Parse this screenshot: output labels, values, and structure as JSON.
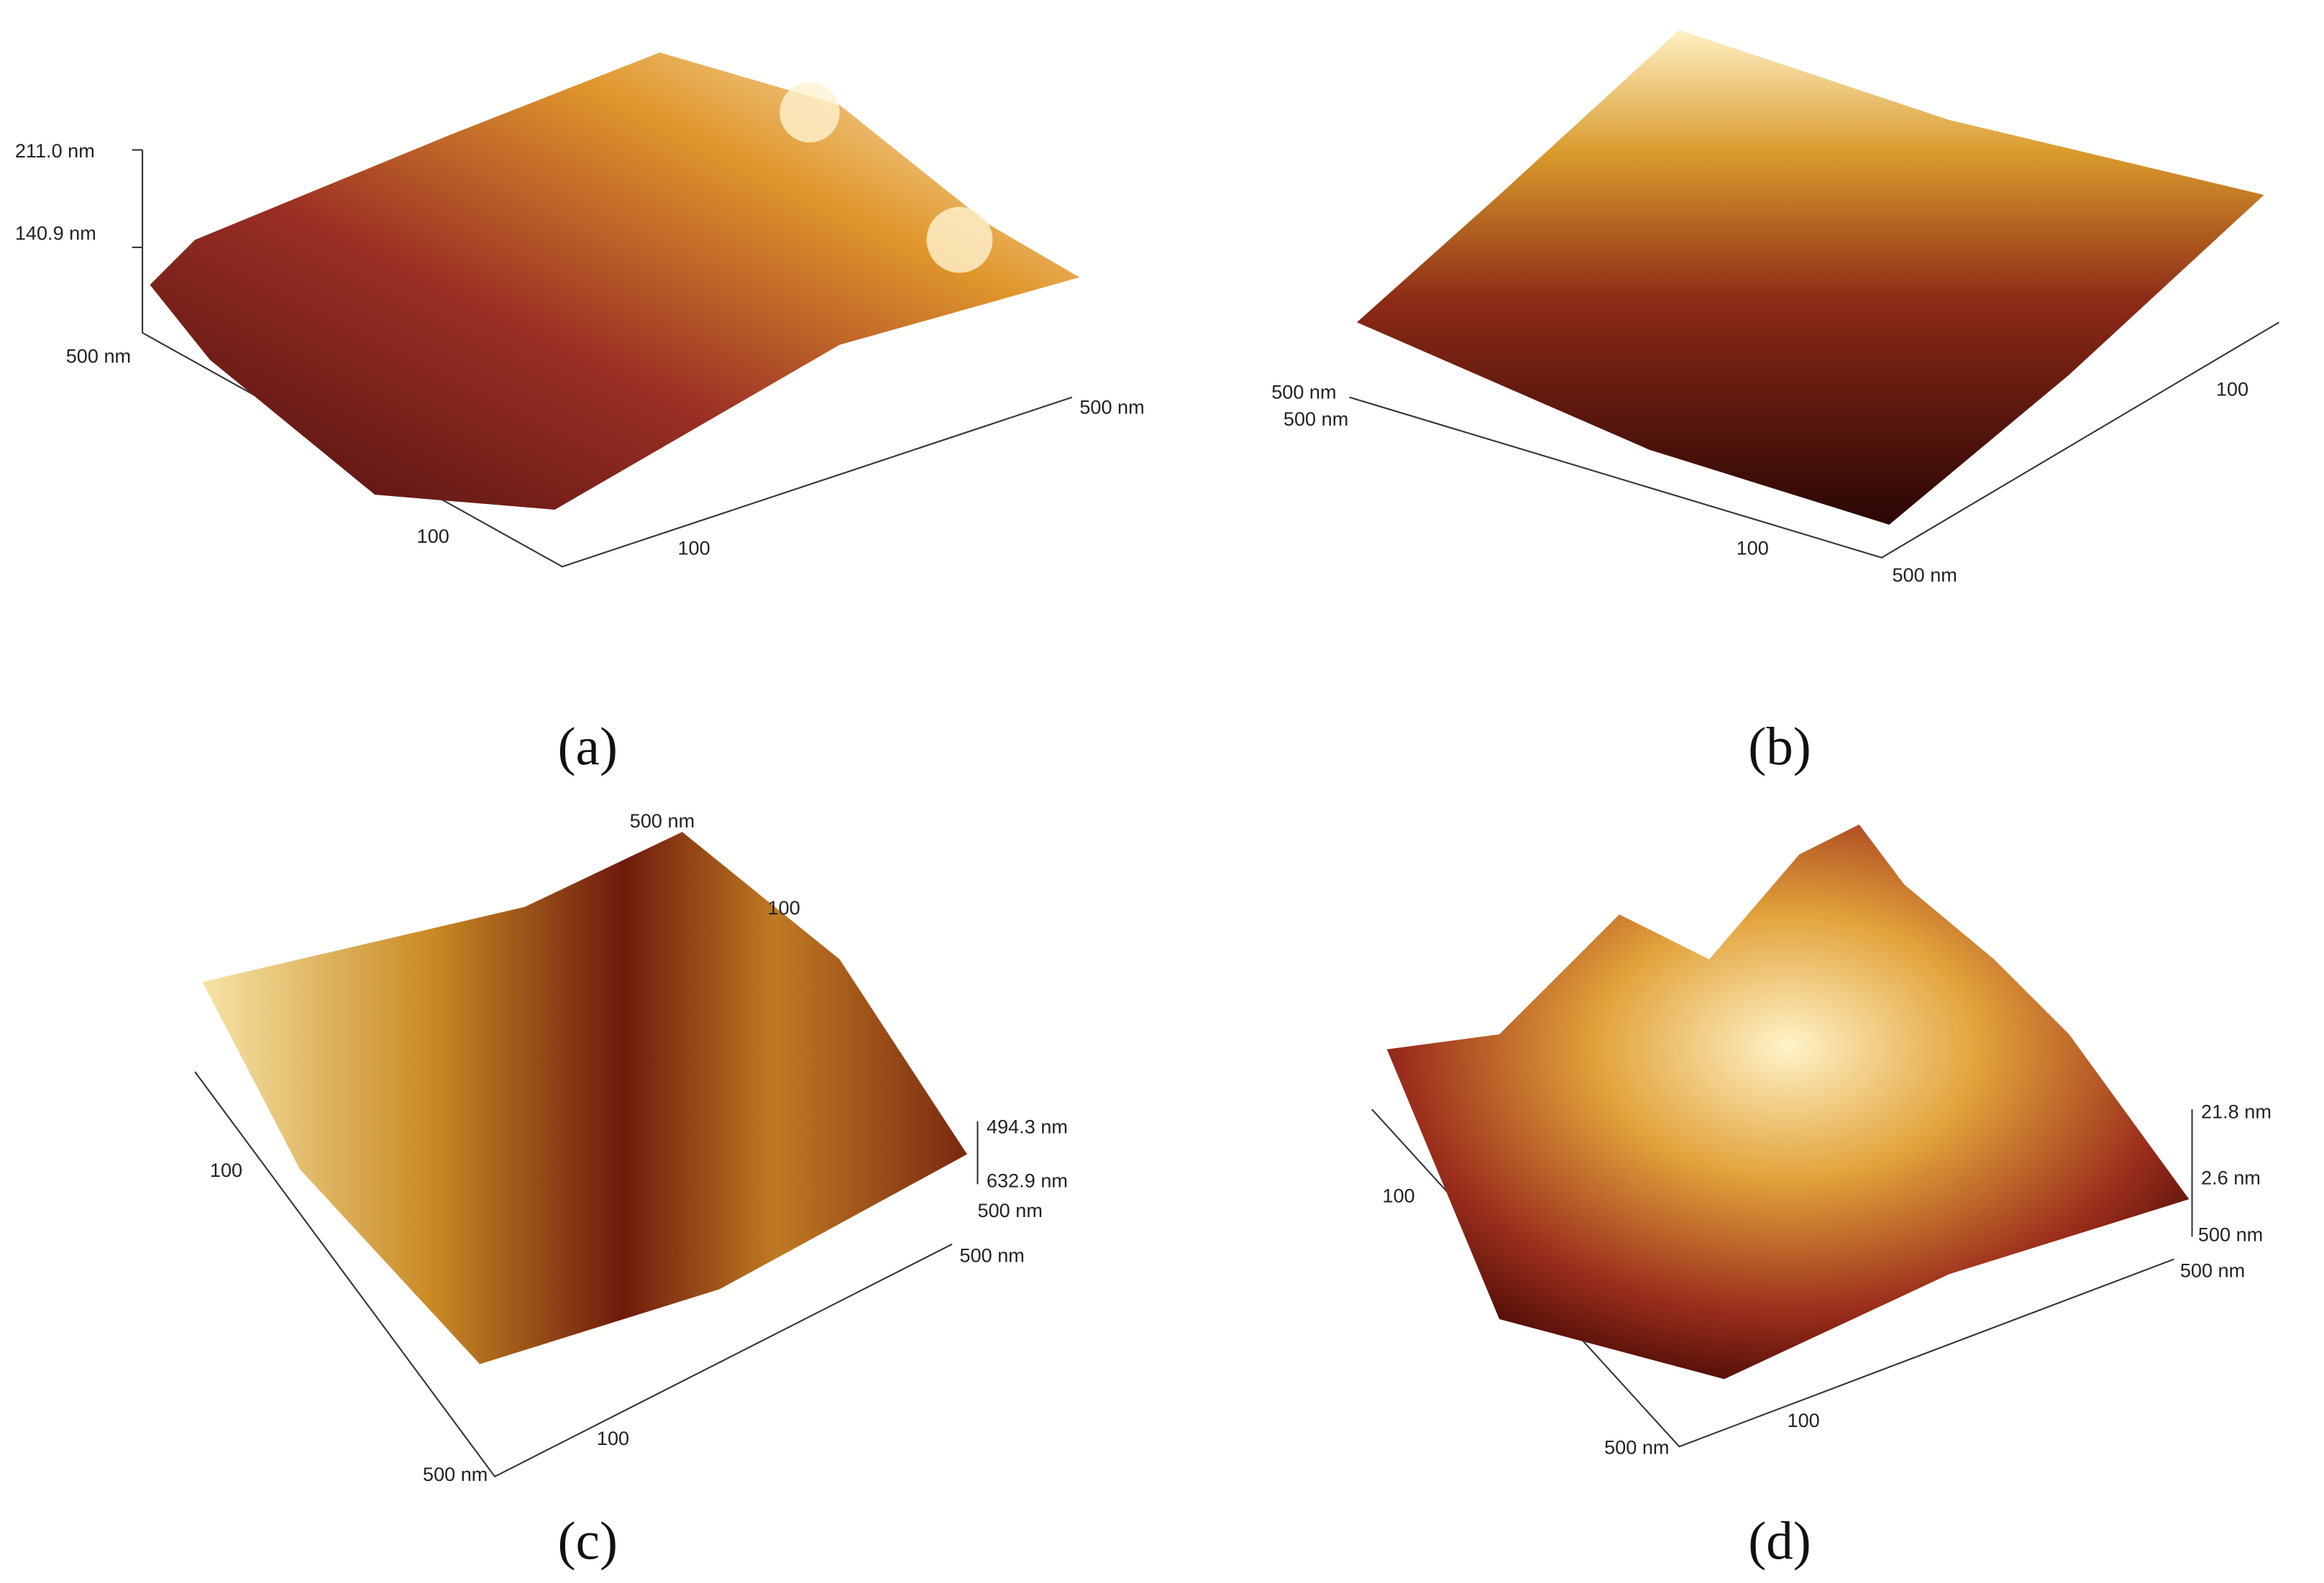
{
  "panels": [
    {
      "caption": "(a)",
      "labels": [
        "211.0 nm",
        "140.9 nm",
        "500 nm",
        "500 nm",
        "100",
        "100"
      ]
    },
    {
      "caption": "(b)",
      "labels": [
        "500 nm",
        "500 nm",
        "100",
        "100",
        "500 nm"
      ]
    },
    {
      "caption": "(c)",
      "labels": [
        "500 nm",
        "100",
        "100",
        "494.3 nm",
        "632.9 nm",
        "500 nm",
        "500 nm",
        "100",
        "500 nm"
      ]
    },
    {
      "caption": "(d)",
      "labels": [
        "21.8 nm",
        "2.6 nm",
        "500 nm",
        "500 nm",
        "100",
        "100",
        "500 nm"
      ]
    }
  ]
}
